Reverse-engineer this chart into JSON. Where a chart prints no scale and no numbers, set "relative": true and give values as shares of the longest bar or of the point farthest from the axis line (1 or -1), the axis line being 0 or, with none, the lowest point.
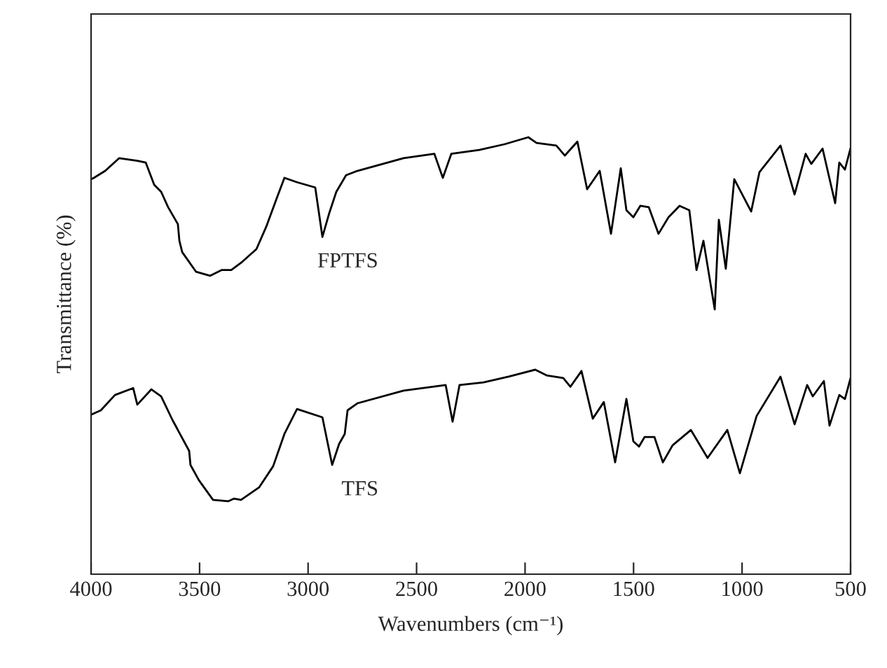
{
  "chart_data": {
    "type": "line",
    "relative": true,
    "xlabel": "Wavenumbers (cm⁻¹)",
    "ylabel": "Transmittance (%)",
    "xlim": [
      4000,
      500
    ],
    "xticks": [
      4000,
      3500,
      3000,
      2500,
      2000,
      1500,
      1000,
      500
    ],
    "tick_labels": "x",
    "grid": false,
    "legend": false,
    "marker": "none",
    "line_style": "solid",
    "series": [
      {
        "name": "FPTFS",
        "color": "#000000",
        "x": [
          4000,
          3987,
          3935,
          3871,
          3787,
          3748,
          3709,
          3677,
          3645,
          3600,
          3593,
          3580,
          3516,
          3451,
          3399,
          3354,
          3303,
          3238,
          3193,
          3141,
          3109,
          3051,
          2967,
          2934,
          2902,
          2870,
          2825,
          2773,
          2560,
          2418,
          2379,
          2340,
          2211,
          2095,
          1985,
          1947,
          1856,
          1817,
          1759,
          1714,
          1656,
          1604,
          1559,
          1533,
          1501,
          1469,
          1430,
          1385,
          1339,
          1288,
          1243,
          1210,
          1178,
          1126,
          1107,
          1075,
          1036,
          958,
          920,
          823,
          758,
          707,
          681,
          629,
          571,
          552,
          526,
          500
        ],
        "values": [
          0.904,
          0.907,
          0.923,
          0.952,
          0.946,
          0.942,
          0.891,
          0.875,
          0.84,
          0.801,
          0.763,
          0.737,
          0.692,
          0.683,
          0.696,
          0.696,
          0.715,
          0.744,
          0.795,
          0.865,
          0.907,
          0.897,
          0.885,
          0.772,
          0.827,
          0.875,
          0.913,
          0.923,
          0.952,
          0.962,
          0.907,
          0.962,
          0.971,
          0.984,
          1.0,
          0.987,
          0.981,
          0.958,
          0.99,
          0.881,
          0.923,
          0.779,
          0.929,
          0.833,
          0.817,
          0.843,
          0.84,
          0.779,
          0.817,
          0.843,
          0.833,
          0.696,
          0.763,
          0.606,
          0.811,
          0.699,
          0.904,
          0.83,
          0.92,
          0.981,
          0.869,
          0.962,
          0.939,
          0.974,
          0.849,
          0.942,
          0.926,
          0.975
        ]
      },
      {
        "name": "TFS",
        "color": "#000000",
        "x": [
          4000,
          3955,
          3890,
          3806,
          3787,
          3722,
          3677,
          3625,
          3548,
          3542,
          3503,
          3438,
          3367,
          3341,
          3309,
          3225,
          3161,
          3109,
          3051,
          2934,
          2889,
          2857,
          2831,
          2818,
          2773,
          2560,
          2366,
          2334,
          2302,
          2192,
          2076,
          1953,
          1901,
          1824,
          1791,
          1740,
          1688,
          1637,
          1585,
          1533,
          1501,
          1475,
          1449,
          1404,
          1365,
          1320,
          1236,
          1159,
          1068,
          1010,
          933,
          823,
          758,
          700,
          674,
          623,
          597,
          552,
          526,
          500
        ],
        "values": [
          0.365,
          0.375,
          0.41,
          0.426,
          0.388,
          0.423,
          0.407,
          0.353,
          0.282,
          0.25,
          0.215,
          0.17,
          0.167,
          0.173,
          0.17,
          0.199,
          0.247,
          0.321,
          0.378,
          0.359,
          0.25,
          0.298,
          0.321,
          0.375,
          0.391,
          0.42,
          0.433,
          0.349,
          0.433,
          0.439,
          0.452,
          0.468,
          0.455,
          0.449,
          0.429,
          0.465,
          0.356,
          0.394,
          0.256,
          0.401,
          0.304,
          0.292,
          0.314,
          0.314,
          0.256,
          0.295,
          0.33,
          0.266,
          0.33,
          0.231,
          0.362,
          0.452,
          0.343,
          0.433,
          0.407,
          0.442,
          0.34,
          0.41,
          0.401,
          0.449
        ]
      }
    ]
  }
}
